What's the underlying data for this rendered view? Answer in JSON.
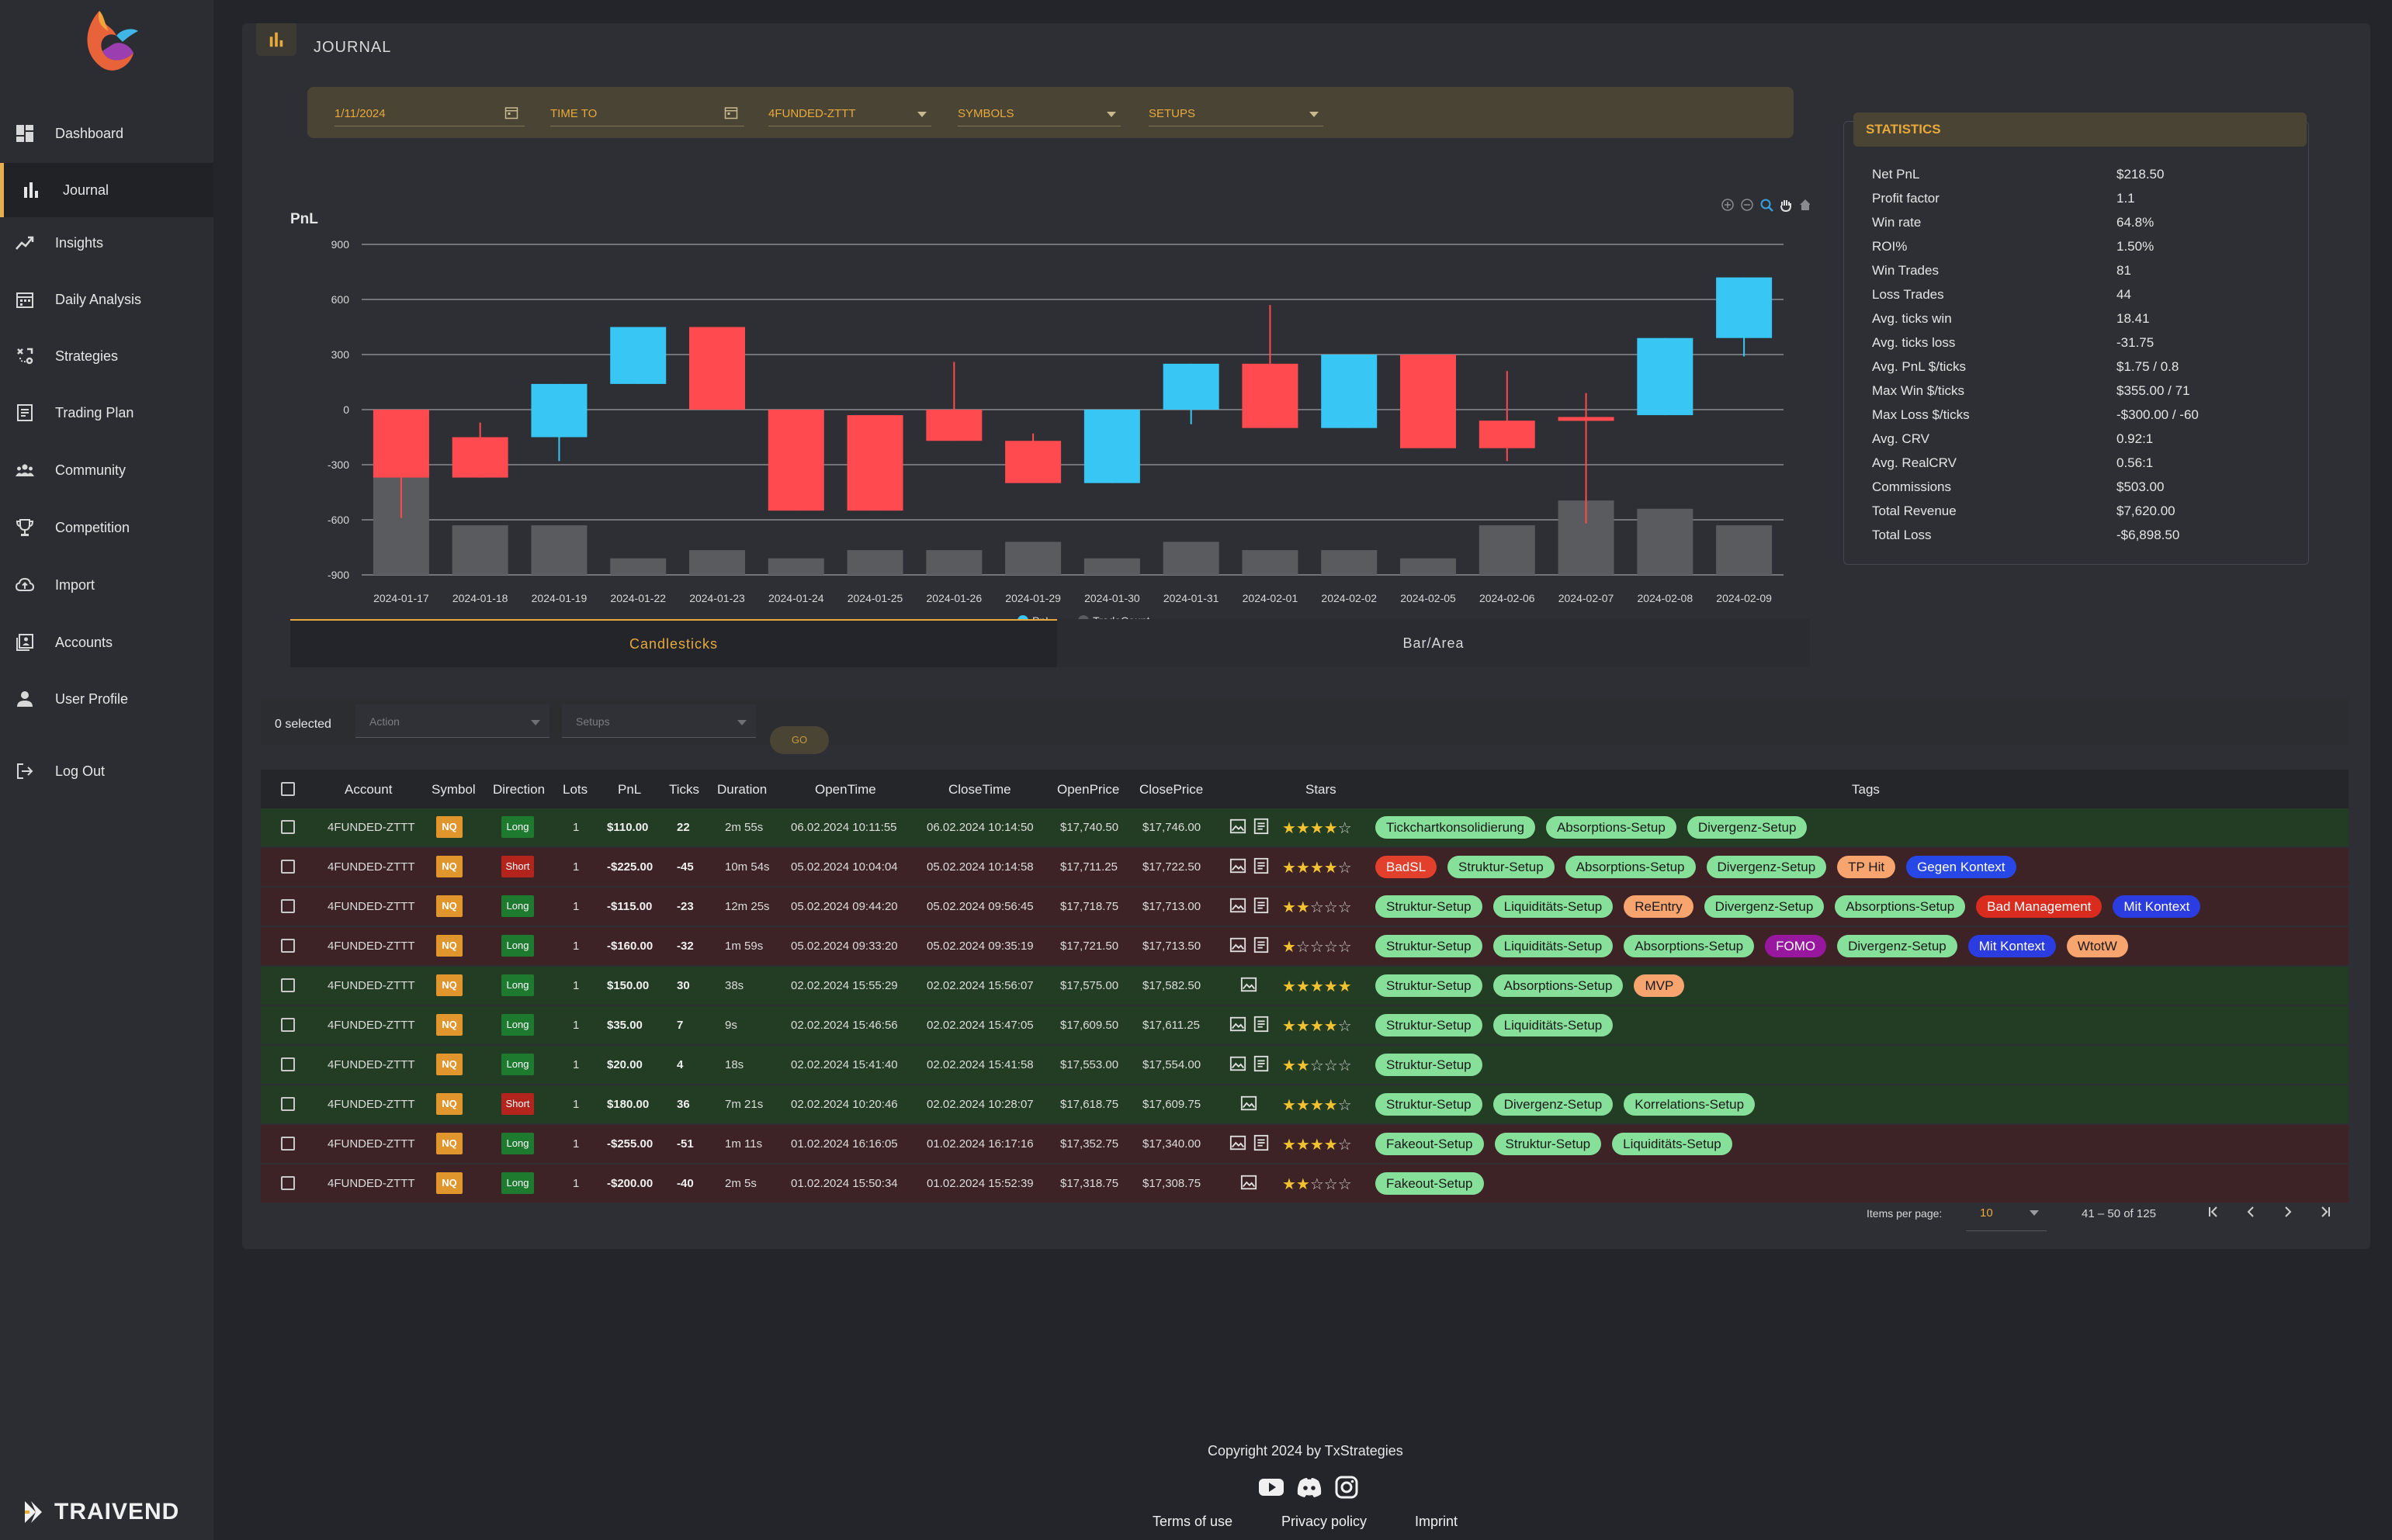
{
  "sidebar": {
    "items": [
      {
        "label": "Dashboard"
      },
      {
        "label": "Journal"
      },
      {
        "label": "Insights"
      },
      {
        "label": "Daily Analysis"
      },
      {
        "label": "Strategies"
      },
      {
        "label": "Trading Plan"
      },
      {
        "label": "Community"
      },
      {
        "label": "Competition"
      },
      {
        "label": "Import"
      },
      {
        "label": "Accounts"
      },
      {
        "label": "User Profile"
      },
      {
        "label": "Log Out"
      }
    ],
    "active": "Journal",
    "brand": "TRAIVEND"
  },
  "header": {
    "title": "JOURNAL"
  },
  "filters": {
    "time_from": "1/11/2024",
    "time_to_label": "TIME TO",
    "account": "4FUNDED-ZTTT",
    "symbols_label": "SYMBOLS",
    "setups_label": "SETUPS"
  },
  "chart_data": {
    "type": "candlestick",
    "title": "PnL",
    "ylim": [
      -900,
      900
    ],
    "yticks": [
      900,
      600,
      300,
      0,
      -300,
      -600,
      -900
    ],
    "categories": [
      "2024-01-17",
      "2024-01-18",
      "2024-01-19",
      "2024-01-22",
      "2024-01-23",
      "2024-01-24",
      "2024-01-25",
      "2024-01-26",
      "2024-01-29",
      "2024-01-30",
      "2024-01-31",
      "2024-02-01",
      "2024-02-02",
      "2024-02-05",
      "2024-02-06",
      "2024-02-07",
      "2024-02-08",
      "2024-02-09"
    ],
    "series": [
      {
        "name": "PnL",
        "candles": [
          {
            "open": 0,
            "close": -370,
            "high": 0,
            "low": -590
          },
          {
            "open": -150,
            "close": -370,
            "high": -70,
            "low": -370
          },
          {
            "open": -150,
            "close": 140,
            "high": 140,
            "low": -280
          },
          {
            "open": 140,
            "close": 450,
            "high": 450,
            "low": 140
          },
          {
            "open": 450,
            "close": 0,
            "high": 450,
            "low": 0
          },
          {
            "open": 0,
            "close": -550,
            "high": 0,
            "low": -550
          },
          {
            "open": -30,
            "close": -550,
            "high": -30,
            "low": -550
          },
          {
            "open": 0,
            "close": -170,
            "high": 260,
            "low": -170
          },
          {
            "open": -170,
            "close": -400,
            "high": -130,
            "low": -400
          },
          {
            "open": -400,
            "close": 0,
            "high": 0,
            "low": -400
          },
          {
            "open": 0,
            "close": 250,
            "high": 250,
            "low": -80
          },
          {
            "open": 250,
            "close": -100,
            "high": 570,
            "low": -100
          },
          {
            "open": -100,
            "close": 300,
            "high": 300,
            "low": -100
          },
          {
            "open": 300,
            "close": -210,
            "high": 300,
            "low": -210
          },
          {
            "open": -60,
            "close": -210,
            "high": 210,
            "low": -280
          },
          {
            "open": -40,
            "close": -60,
            "high": 90,
            "low": -620
          },
          {
            "open": -30,
            "close": 390,
            "high": 390,
            "low": -30
          },
          {
            "open": 390,
            "close": 720,
            "high": 720,
            "low": 290
          }
        ]
      },
      {
        "name": "TradeCount",
        "values": [
          13,
          6,
          6,
          2,
          3,
          2,
          3,
          3,
          4,
          2,
          4,
          3,
          3,
          2,
          6,
          9,
          8,
          6
        ]
      }
    ],
    "legend": [
      "PnL",
      "TradeCount"
    ],
    "colors": {
      "up": "#38c6f4",
      "down": "#ff4a4f",
      "count": "#5a5b5e"
    }
  },
  "chart_tabs": [
    {
      "label": "Candlesticks",
      "active": true
    },
    {
      "label": "Bar/Area",
      "active": false
    }
  ],
  "statistics": {
    "title": "STATISTICS",
    "rows": [
      {
        "k": "Net PnL",
        "v": "$218.50"
      },
      {
        "k": "Profit factor",
        "v": "1.1"
      },
      {
        "k": "Win rate",
        "v": "64.8%"
      },
      {
        "k": "ROI%",
        "v": "1.50%"
      },
      {
        "k": "Win Trades",
        "v": "81"
      },
      {
        "k": "Loss Trades",
        "v": "44"
      },
      {
        "k": "Avg. ticks win",
        "v": "18.41"
      },
      {
        "k": "Avg. ticks loss",
        "v": "-31.75"
      },
      {
        "k": "Avg. PnL $/ticks",
        "v": "$1.75 / 0.8"
      },
      {
        "k": "Max Win $/ticks",
        "v": "$355.00 / 71"
      },
      {
        "k": "Max Loss $/ticks",
        "v": "-$300.00 / -60"
      },
      {
        "k": "Avg. CRV",
        "v": "0.92:1"
      },
      {
        "k": "Avg. RealCRV",
        "v": "0.56:1"
      },
      {
        "k": "Commissions",
        "v": "$503.00"
      },
      {
        "k": "Total Revenue",
        "v": "$7,620.00"
      },
      {
        "k": "Total Loss",
        "v": "-$6,898.50"
      }
    ]
  },
  "table": {
    "selected_text": "0 selected",
    "action_placeholder": "Action",
    "setups_placeholder": "Setups",
    "go_label": "GO",
    "columns": [
      "Account",
      "Symbol",
      "Direction",
      "Lots",
      "PnL",
      "Ticks",
      "Duration",
      "OpenTime",
      "CloseTime",
      "OpenPrice",
      "ClosePrice",
      "Stars",
      "Tags"
    ],
    "rows": [
      {
        "result": "win",
        "account": "4FUNDED-ZTTT",
        "symbol": "NQ",
        "direction": "Long",
        "lots": "1",
        "pnl": "$110.00",
        "ticks": "22",
        "duration": "2m 55s",
        "open_time": "06.02.2024 10:11:55",
        "close_time": "06.02.2024 10:14:50",
        "open_price": "$17,740.50",
        "close_price": "$17,746.00",
        "notes": true,
        "stars": 4,
        "tags": [
          "Tickchartkonsolidierung",
          "Absorptions-Setup",
          "Divergenz-Setup"
        ]
      },
      {
        "result": "loss",
        "account": "4FUNDED-ZTTT",
        "symbol": "NQ",
        "direction": "Short",
        "lots": "1",
        "pnl": "-$225.00",
        "ticks": "-45",
        "duration": "10m 54s",
        "open_time": "05.02.2024 10:04:04",
        "close_time": "05.02.2024 10:14:58",
        "open_price": "$17,711.25",
        "close_price": "$17,722.50",
        "notes": true,
        "stars": 4,
        "tags": [
          "BadSL",
          "Struktur-Setup",
          "Absorptions-Setup",
          "Divergenz-Setup",
          "TP Hit",
          "Gegen Kontext"
        ]
      },
      {
        "result": "loss",
        "account": "4FUNDED-ZTTT",
        "symbol": "NQ",
        "direction": "Long",
        "lots": "1",
        "pnl": "-$115.00",
        "ticks": "-23",
        "duration": "12m 25s",
        "open_time": "05.02.2024 09:44:20",
        "close_time": "05.02.2024 09:56:45",
        "open_price": "$17,718.75",
        "close_price": "$17,713.00",
        "notes": true,
        "stars": 2,
        "tags": [
          "Struktur-Setup",
          "Liquiditäts-Setup",
          "ReEntry",
          "Divergenz-Setup",
          "Absorptions-Setup",
          "Bad Management",
          "Mit Kontext"
        ]
      },
      {
        "result": "loss",
        "account": "4FUNDED-ZTTT",
        "symbol": "NQ",
        "direction": "Long",
        "lots": "1",
        "pnl": "-$160.00",
        "ticks": "-32",
        "duration": "1m 59s",
        "open_time": "05.02.2024 09:33:20",
        "close_time": "05.02.2024 09:35:19",
        "open_price": "$17,721.50",
        "close_price": "$17,713.50",
        "notes": true,
        "stars": 1,
        "tags": [
          "Struktur-Setup",
          "Liquiditäts-Setup",
          "Absorptions-Setup",
          "FOMO",
          "Divergenz-Setup",
          "Mit Kontext",
          "WtotW"
        ]
      },
      {
        "result": "win",
        "account": "4FUNDED-ZTTT",
        "symbol": "NQ",
        "direction": "Long",
        "lots": "1",
        "pnl": "$150.00",
        "ticks": "30",
        "duration": "38s",
        "open_time": "02.02.2024 15:55:29",
        "close_time": "02.02.2024 15:56:07",
        "open_price": "$17,575.00",
        "close_price": "$17,582.50",
        "notes": false,
        "stars": 5,
        "tags": [
          "Struktur-Setup",
          "Absorptions-Setup",
          "MVP"
        ]
      },
      {
        "result": "win",
        "account": "4FUNDED-ZTTT",
        "symbol": "NQ",
        "direction": "Long",
        "lots": "1",
        "pnl": "$35.00",
        "ticks": "7",
        "duration": "9s",
        "open_time": "02.02.2024 15:46:56",
        "close_time": "02.02.2024 15:47:05",
        "open_price": "$17,609.50",
        "close_price": "$17,611.25",
        "notes": true,
        "stars": 4,
        "tags": [
          "Struktur-Setup",
          "Liquiditäts-Setup"
        ]
      },
      {
        "result": "win",
        "account": "4FUNDED-ZTTT",
        "symbol": "NQ",
        "direction": "Long",
        "lots": "1",
        "pnl": "$20.00",
        "ticks": "4",
        "duration": "18s",
        "open_time": "02.02.2024 15:41:40",
        "close_time": "02.02.2024 15:41:58",
        "open_price": "$17,553.00",
        "close_price": "$17,554.00",
        "notes": true,
        "stars": 2,
        "tags": [
          "Struktur-Setup"
        ]
      },
      {
        "result": "win",
        "account": "4FUNDED-ZTTT",
        "symbol": "NQ",
        "direction": "Short",
        "lots": "1",
        "pnl": "$180.00",
        "ticks": "36",
        "duration": "7m 21s",
        "open_time": "02.02.2024 10:20:46",
        "close_time": "02.02.2024 10:28:07",
        "open_price": "$17,618.75",
        "close_price": "$17,609.75",
        "notes": false,
        "stars": 4,
        "tags": [
          "Struktur-Setup",
          "Divergenz-Setup",
          "Korrelations-Setup"
        ]
      },
      {
        "result": "loss",
        "account": "4FUNDED-ZTTT",
        "symbol": "NQ",
        "direction": "Long",
        "lots": "1",
        "pnl": "-$255.00",
        "ticks": "-51",
        "duration": "1m 11s",
        "open_time": "01.02.2024 16:16:05",
        "close_time": "01.02.2024 16:17:16",
        "open_price": "$17,352.75",
        "close_price": "$17,340.00",
        "notes": true,
        "stars": 4,
        "tags": [
          "Fakeout-Setup",
          "Struktur-Setup",
          "Liquiditäts-Setup"
        ]
      },
      {
        "result": "loss",
        "account": "4FUNDED-ZTTT",
        "symbol": "NQ",
        "direction": "Long",
        "lots": "1",
        "pnl": "-$200.00",
        "ticks": "-40",
        "duration": "2m 5s",
        "open_time": "01.02.2024 15:50:34",
        "close_time": "01.02.2024 15:52:39",
        "open_price": "$17,318.75",
        "close_price": "$17,308.75",
        "notes": false,
        "stars": 2,
        "tags": [
          "Fakeout-Setup"
        ]
      }
    ],
    "tag_colors": {
      "BadSL": "#e2402d",
      "TP Hit": "#f7a46f",
      "Gegen Kontext": "#2748e6",
      "ReEntry": "#f7a46f",
      "Bad Management": "#d92c1f",
      "Mit Kontext": "#2b3de0",
      "FOMO": "#97189e",
      "WtotW": "#f7a46f",
      "MVP": "#f7a46f",
      "default": "#86e09a"
    },
    "pagination": {
      "items_per_page_label": "Items per page:",
      "items_per_page": "10",
      "range": "41 – 50 of 125"
    }
  },
  "footer": {
    "copyright": "Copyright 2024 by TxStrategies",
    "links": [
      "Terms of use",
      "Privacy policy",
      "Imprint"
    ]
  }
}
